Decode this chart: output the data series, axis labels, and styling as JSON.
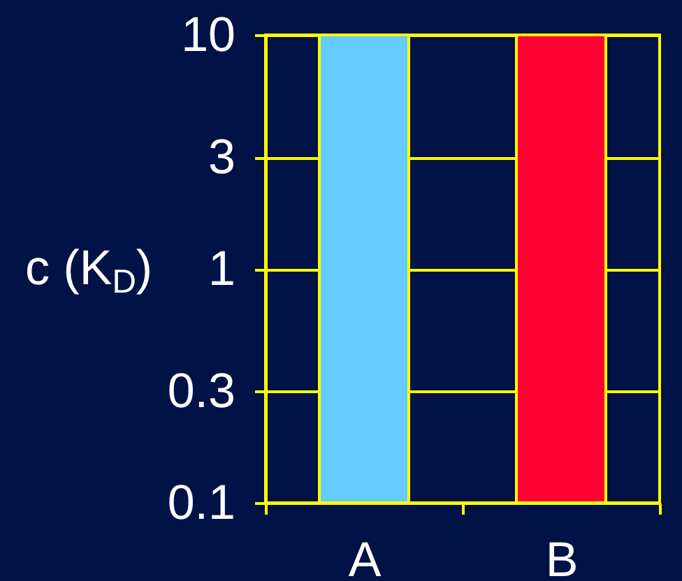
{
  "chart_data": {
    "type": "bar",
    "ylabel": "c (K$_{D}$)",
    "categories": [
      "A",
      "B"
    ],
    "values": [
      10,
      10
    ],
    "colors": [
      "#66ccff",
      "#ff0033"
    ],
    "log": true,
    "ylim": [
      0.1,
      10
    ],
    "yticks": [
      0.1,
      0.3,
      1,
      3,
      10
    ],
    "grid": "y"
  }
}
